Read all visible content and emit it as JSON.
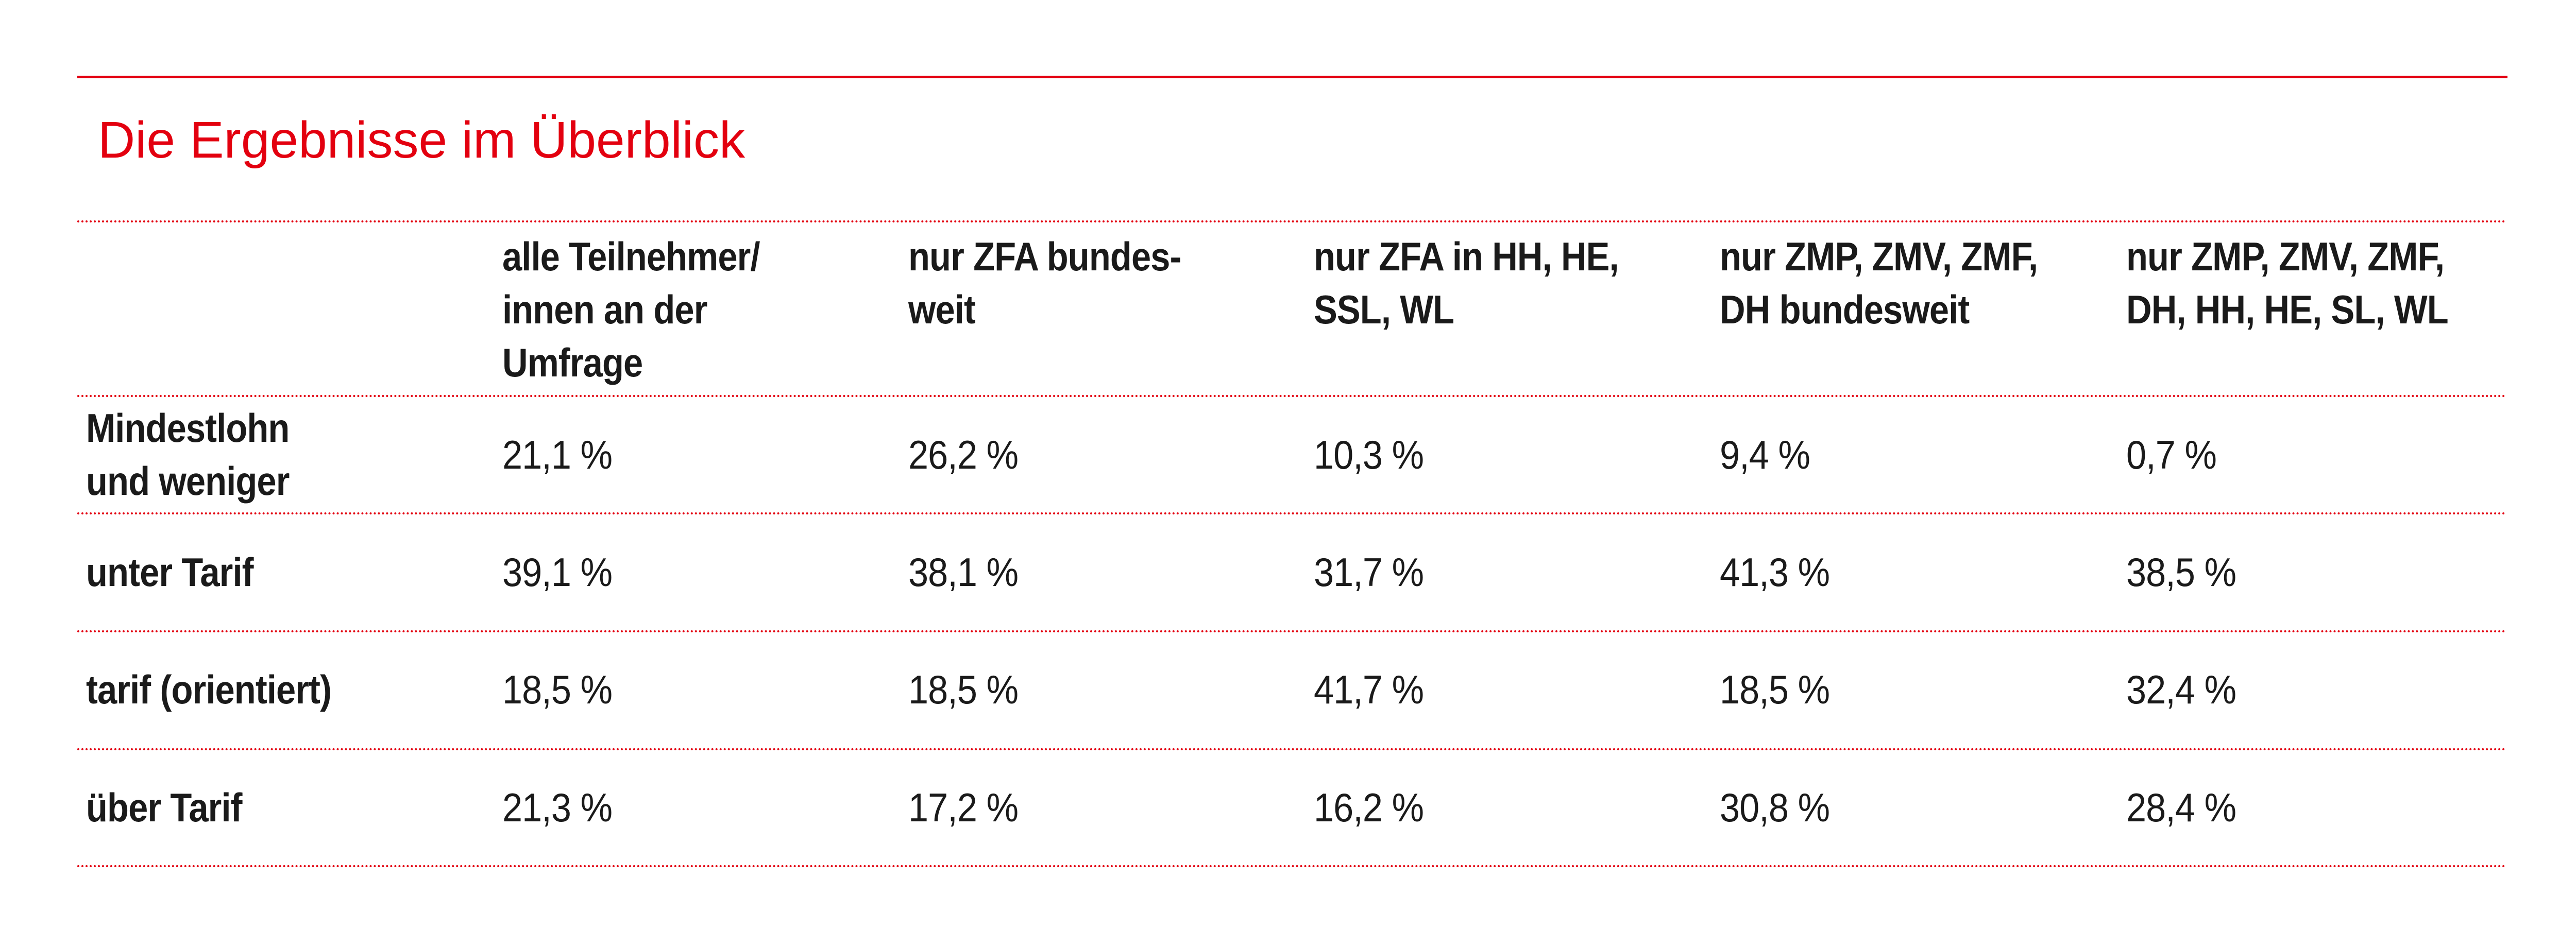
{
  "title": "Die Ergebnisse im Überblick",
  "colors": {
    "accent": "#e3000f",
    "text": "#1a1a1a"
  },
  "columns": [
    "alle Teilnehmer/\ninnen an der\nUmfrage",
    "nur ZFA bundes-\nweit",
    "nur ZFA in HH, HE,\nSSL, WL",
    "nur ZMP, ZMV, ZMF,\nDH bundesweit",
    "nur ZMP, ZMV, ZMF,\nDH, HH, HE, SL, WL"
  ],
  "rows": [
    {
      "label": "Mindestlohn\nund weniger",
      "values": [
        "21,1 %",
        "26,2 %",
        "10,3 %",
        "9,4 %",
        "0,7 %"
      ]
    },
    {
      "label": "unter Tarif",
      "values": [
        "39,1 %",
        "38,1 %",
        "31,7 %",
        "41,3 %",
        "38,5 %"
      ]
    },
    {
      "label": "tarif (orientiert)",
      "values": [
        "18,5 %",
        "18,5 %",
        "41,7 %",
        "18,5 %",
        "32,4 %"
      ]
    },
    {
      "label": "über Tarif",
      "values": [
        "21,3 %",
        "17,2 %",
        "16,2 %",
        "30,8 %",
        "28,4 %"
      ]
    }
  ]
}
